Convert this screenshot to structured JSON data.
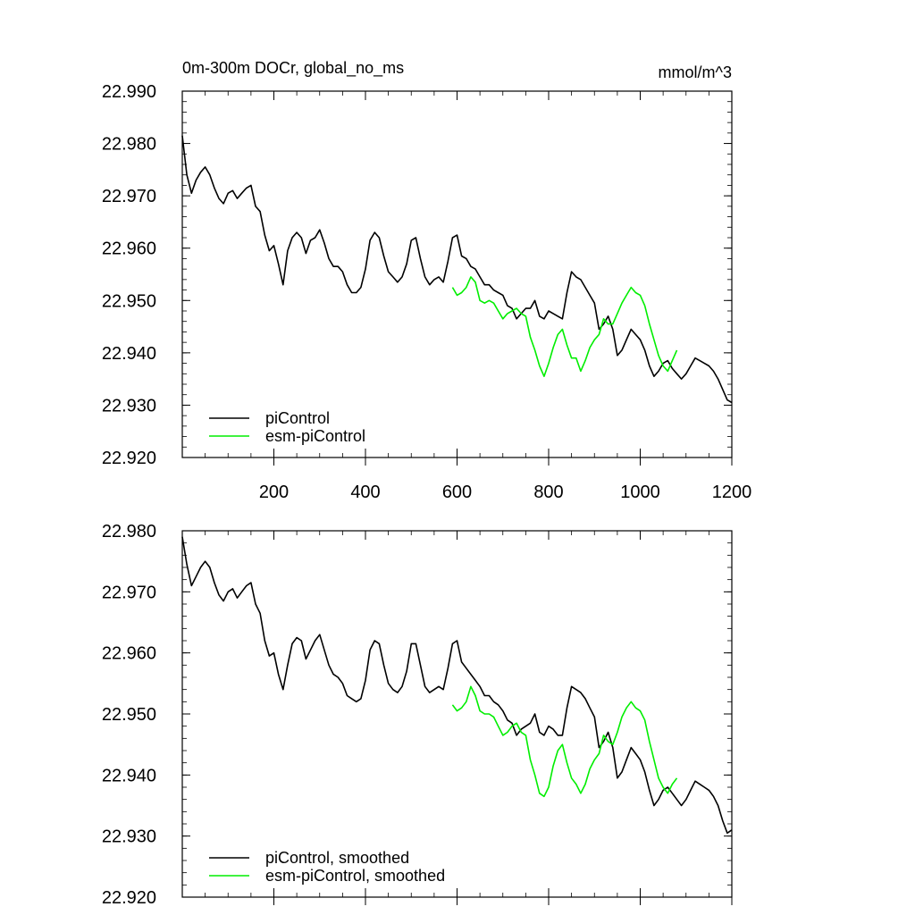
{
  "chart_data": [
    {
      "type": "line",
      "title": "0m-300m DOCr, global_no_ms",
      "units": "mmol/m^3",
      "xlabel": "",
      "ylabel": "",
      "xlim": [
        0,
        1200
      ],
      "ylim": [
        22.92,
        22.99
      ],
      "xticks": [
        200,
        400,
        600,
        800,
        1000,
        1200
      ],
      "yticks": [
        "22.920",
        "22.930",
        "22.940",
        "22.950",
        "22.960",
        "22.970",
        "22.980",
        "22.990"
      ],
      "show_x_tick_labels": true,
      "legend_position": "bottom-left",
      "series": [
        {
          "name": "piControl",
          "color": "#000000",
          "x": [
            0,
            10,
            20,
            30,
            40,
            50,
            60,
            70,
            80,
            90,
            100,
            110,
            120,
            130,
            140,
            150,
            160,
            170,
            180,
            190,
            200,
            210,
            220,
            230,
            240,
            250,
            260,
            270,
            280,
            290,
            300,
            310,
            320,
            330,
            340,
            350,
            360,
            370,
            380,
            390,
            400,
            410,
            420,
            430,
            440,
            450,
            460,
            470,
            480,
            490,
            500,
            510,
            520,
            530,
            540,
            550,
            560,
            570,
            580,
            590,
            600,
            610,
            620,
            630,
            640,
            650,
            660,
            670,
            680,
            690,
            700,
            710,
            720,
            730,
            740,
            750,
            760,
            770,
            780,
            790,
            800,
            810,
            820,
            830,
            840,
            850,
            860,
            870,
            880,
            890,
            900,
            910,
            920,
            930,
            940,
            950,
            960,
            970,
            980,
            990,
            1000,
            1010,
            1020,
            1030,
            1040,
            1050,
            1060,
            1070,
            1080,
            1090,
            1100,
            1110,
            1120,
            1130,
            1140,
            1150,
            1160,
            1170,
            1180,
            1190,
            1200
          ],
          "values": [
            22.9815,
            22.974,
            22.9705,
            22.973,
            22.9745,
            22.9755,
            22.974,
            22.9715,
            22.9695,
            22.9685,
            22.9705,
            22.971,
            22.9695,
            22.9705,
            22.9715,
            22.972,
            22.968,
            22.967,
            22.9625,
            22.9595,
            22.9605,
            22.957,
            22.953,
            22.9595,
            22.962,
            22.963,
            22.962,
            22.959,
            22.9615,
            22.962,
            22.9635,
            22.961,
            22.958,
            22.9565,
            22.9565,
            22.9555,
            22.953,
            22.9515,
            22.9515,
            22.9525,
            22.956,
            22.9615,
            22.963,
            22.962,
            22.9585,
            22.9555,
            22.9545,
            22.9535,
            22.9545,
            22.957,
            22.9615,
            22.962,
            22.958,
            22.9545,
            22.953,
            22.954,
            22.9545,
            22.9535,
            22.9575,
            22.962,
            22.9625,
            22.9585,
            22.958,
            22.9565,
            22.956,
            22.9545,
            22.953,
            22.953,
            22.952,
            22.9515,
            22.951,
            22.949,
            22.9485,
            22.9465,
            22.9475,
            22.9485,
            22.9485,
            22.95,
            22.947,
            22.9465,
            22.948,
            22.9475,
            22.947,
            22.9465,
            22.9515,
            22.9555,
            22.9545,
            22.954,
            22.9525,
            22.951,
            22.9495,
            22.9445,
            22.9455,
            22.947,
            22.9445,
            22.9395,
            22.9405,
            22.9425,
            22.9445,
            22.9435,
            22.9425,
            22.9405,
            22.9375,
            22.9355,
            22.9365,
            22.938,
            22.9385,
            22.937,
            22.936,
            22.935,
            22.936,
            22.9375,
            22.939,
            22.9385,
            22.938,
            22.9375,
            22.9365,
            22.935,
            22.933,
            22.931,
            22.9305
          ]
        },
        {
          "name": "esm-piControl",
          "color": "#00ee00",
          "x": [
            590,
            600,
            610,
            620,
            630,
            640,
            650,
            660,
            670,
            680,
            690,
            700,
            710,
            720,
            730,
            740,
            750,
            760,
            770,
            780,
            790,
            800,
            810,
            820,
            830,
            840,
            850,
            860,
            870,
            880,
            890,
            900,
            910,
            920,
            930,
            940,
            950,
            960,
            970,
            980,
            990,
            1000,
            1010,
            1020,
            1030,
            1040,
            1050,
            1060,
            1070,
            1080
          ],
          "values": [
            22.9525,
            22.951,
            22.9515,
            22.9525,
            22.9545,
            22.9535,
            22.95,
            22.9495,
            22.95,
            22.9495,
            22.948,
            22.9465,
            22.9475,
            22.948,
            22.9485,
            22.9475,
            22.947,
            22.943,
            22.9405,
            22.9375,
            22.9355,
            22.938,
            22.941,
            22.9435,
            22.9445,
            22.9415,
            22.939,
            22.939,
            22.9365,
            22.9385,
            22.941,
            22.9425,
            22.9435,
            22.9465,
            22.9455,
            22.9455,
            22.9475,
            22.9495,
            22.951,
            22.9525,
            22.9515,
            22.951,
            22.949,
            22.9455,
            22.9425,
            22.9395,
            22.9375,
            22.9365,
            22.9385,
            22.9405
          ]
        }
      ]
    },
    {
      "type": "line",
      "title": "",
      "units": "",
      "xlabel": "",
      "ylabel": "",
      "xlim": [
        0,
        1200
      ],
      "ylim": [
        22.92,
        22.98
      ],
      "xticks": [
        200,
        400,
        600,
        800,
        1000,
        1200
      ],
      "yticks": [
        "22.920",
        "22.930",
        "22.940",
        "22.950",
        "22.960",
        "22.970",
        "22.980"
      ],
      "show_x_tick_labels": false,
      "legend_position": "bottom-left",
      "series": [
        {
          "name": "piControl, smoothed",
          "color": "#000000",
          "x": [
            0,
            10,
            20,
            30,
            40,
            50,
            60,
            70,
            80,
            90,
            100,
            110,
            120,
            130,
            140,
            150,
            160,
            170,
            180,
            190,
            200,
            210,
            220,
            230,
            240,
            250,
            260,
            270,
            280,
            290,
            300,
            310,
            320,
            330,
            340,
            350,
            360,
            370,
            380,
            390,
            400,
            410,
            420,
            430,
            440,
            450,
            460,
            470,
            480,
            490,
            500,
            510,
            520,
            530,
            540,
            550,
            560,
            570,
            580,
            590,
            600,
            610,
            620,
            630,
            640,
            650,
            660,
            670,
            680,
            690,
            700,
            710,
            720,
            730,
            740,
            750,
            760,
            770,
            780,
            790,
            800,
            810,
            820,
            830,
            840,
            850,
            860,
            870,
            880,
            890,
            900,
            910,
            920,
            930,
            940,
            950,
            960,
            970,
            980,
            990,
            1000,
            1010,
            1020,
            1030,
            1040,
            1050,
            1060,
            1070,
            1080,
            1090,
            1100,
            1110,
            1120,
            1130,
            1140,
            1150,
            1160,
            1170,
            1180,
            1190,
            1200
          ],
          "values": [
            22.979,
            22.9745,
            22.971,
            22.9725,
            22.974,
            22.975,
            22.974,
            22.9715,
            22.9695,
            22.9685,
            22.97,
            22.9705,
            22.969,
            22.97,
            22.971,
            22.9715,
            22.968,
            22.9665,
            22.962,
            22.9595,
            22.96,
            22.9565,
            22.954,
            22.958,
            22.9615,
            22.9625,
            22.962,
            22.959,
            22.9605,
            22.962,
            22.963,
            22.9605,
            22.958,
            22.9565,
            22.956,
            22.955,
            22.953,
            22.9525,
            22.952,
            22.9525,
            22.9555,
            22.9605,
            22.962,
            22.9615,
            22.958,
            22.955,
            22.954,
            22.9535,
            22.9545,
            22.957,
            22.9615,
            22.9615,
            22.958,
            22.9545,
            22.9535,
            22.954,
            22.9545,
            22.954,
            22.9575,
            22.9615,
            22.962,
            22.9585,
            22.9575,
            22.9565,
            22.9555,
            22.9545,
            22.953,
            22.953,
            22.952,
            22.9515,
            22.9505,
            22.949,
            22.9485,
            22.9465,
            22.9475,
            22.948,
            22.9485,
            22.95,
            22.947,
            22.9465,
            22.948,
            22.9475,
            22.9465,
            22.9465,
            22.951,
            22.9545,
            22.954,
            22.9535,
            22.9525,
            22.951,
            22.9495,
            22.9445,
            22.9455,
            22.947,
            22.9445,
            22.9395,
            22.9405,
            22.9425,
            22.9445,
            22.9435,
            22.9425,
            22.9405,
            22.9375,
            22.935,
            22.936,
            22.9375,
            22.938,
            22.937,
            22.936,
            22.935,
            22.936,
            22.9375,
            22.939,
            22.9385,
            22.938,
            22.9375,
            22.9365,
            22.935,
            22.9325,
            22.9305,
            22.931
          ]
        },
        {
          "name": "esm-piControl, smoothed",
          "color": "#00ee00",
          "x": [
            590,
            600,
            610,
            620,
            630,
            640,
            650,
            660,
            670,
            680,
            690,
            700,
            710,
            720,
            730,
            740,
            750,
            760,
            770,
            780,
            790,
            800,
            810,
            820,
            830,
            840,
            850,
            860,
            870,
            880,
            890,
            900,
            910,
            920,
            930,
            940,
            950,
            960,
            970,
            980,
            990,
            1000,
            1010,
            1020,
            1030,
            1040,
            1050,
            1060,
            1070,
            1080
          ],
          "values": [
            22.9515,
            22.9505,
            22.951,
            22.952,
            22.9545,
            22.953,
            22.9505,
            22.95,
            22.95,
            22.9495,
            22.948,
            22.9465,
            22.947,
            22.948,
            22.9485,
            22.947,
            22.9465,
            22.9425,
            22.94,
            22.937,
            22.9365,
            22.938,
            22.9415,
            22.944,
            22.945,
            22.942,
            22.9395,
            22.9385,
            22.937,
            22.9385,
            22.941,
            22.9425,
            22.9435,
            22.9465,
            22.9455,
            22.945,
            22.947,
            22.9495,
            22.951,
            22.952,
            22.951,
            22.9505,
            22.949,
            22.9455,
            22.9425,
            22.9395,
            22.938,
            22.937,
            22.9385,
            22.9395
          ]
        }
      ]
    }
  ]
}
